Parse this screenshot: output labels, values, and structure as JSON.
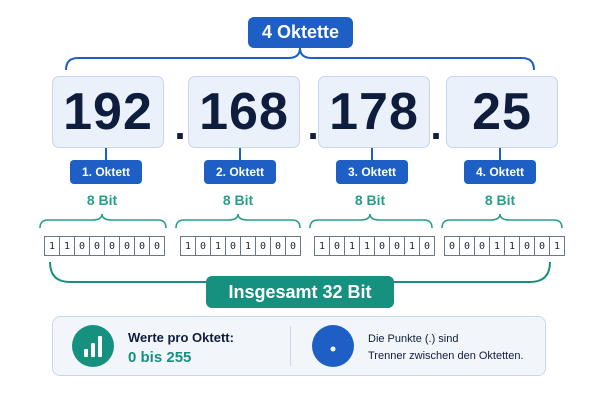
{
  "header": {
    "badge": "4 Oktette"
  },
  "octets": [
    {
      "value": "192",
      "label": "1. Oktett",
      "bit_count": "8 Bit",
      "bits": [
        "1",
        "1",
        "0",
        "0",
        "0",
        "0",
        "0",
        "0"
      ]
    },
    {
      "value": "168",
      "label": "2. Oktett",
      "bit_count": "8 Bit",
      "bits": [
        "1",
        "0",
        "1",
        "0",
        "1",
        "0",
        "0",
        "0"
      ]
    },
    {
      "value": "178",
      "label": "3. Oktett",
      "bit_count": "8 Bit",
      "bits": [
        "1",
        "0",
        "1",
        "1",
        "0",
        "0",
        "1",
        "0"
      ]
    },
    {
      "value": "25",
      "label": "4. Oktett",
      "bit_count": "8 Bit",
      "bits": [
        "0",
        "0",
        "0",
        "1",
        "1",
        "0",
        "0",
        "1"
      ]
    }
  ],
  "separator": ".",
  "footer": {
    "total": "Insgesamt 32 Bit",
    "range_title": "Werte pro Oktett:",
    "range_value": "0 bis 255",
    "note_line1": "Die Punkte (.) sind",
    "note_line2": "Trenner zwischen den Oktetten."
  },
  "icons": {
    "range": "bar-chart-icon",
    "separator": "dot-icon"
  },
  "colors": {
    "blue": "#1d5fc4",
    "teal": "#16907f",
    "dark": "#0f1d3d"
  }
}
